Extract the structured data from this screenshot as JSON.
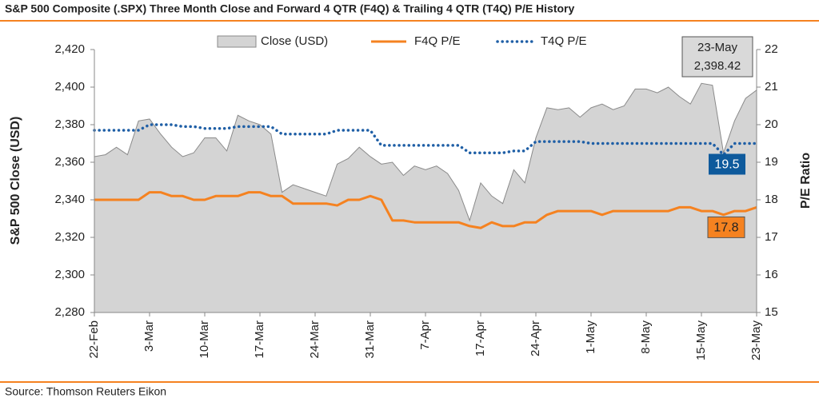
{
  "chart_data": {
    "type": "area-line",
    "title": "S&P 500 Composite (.SPX) Three Month Close and Forward 4 QTR (F4Q) & Trailing 4 QTR (T4Q) P/E History",
    "source": "Source: Thomson Reuters Eikon",
    "y_label": "S&P 500 Close (USD)",
    "y2_label": "P/E Ratio",
    "categories": [
      "22-Feb",
      null,
      null,
      null,
      null,
      "3-Mar",
      null,
      null,
      null,
      null,
      "10-Mar",
      null,
      null,
      null,
      null,
      "17-Mar",
      null,
      null,
      null,
      null,
      "24-Mar",
      null,
      null,
      null,
      null,
      "31-Mar",
      null,
      null,
      null,
      null,
      "7-Apr",
      null,
      null,
      null,
      null,
      "17-Apr",
      null,
      null,
      null,
      null,
      "24-Apr",
      null,
      null,
      null,
      null,
      "1-May",
      null,
      null,
      null,
      null,
      "8-May",
      null,
      null,
      null,
      null,
      "15-May",
      null,
      null,
      null,
      null,
      "23-May"
    ],
    "ylim": [
      2280,
      2420
    ],
    "yticks": [
      {
        "value": 2280,
        "label": "2,280"
      },
      {
        "value": 2300,
        "label": "2,300"
      },
      {
        "value": 2320,
        "label": "2,320"
      },
      {
        "value": 2340,
        "label": "2,340"
      },
      {
        "value": 2360,
        "label": "2,360"
      },
      {
        "value": 2380,
        "label": "2,380"
      },
      {
        "value": 2400,
        "label": "2,400"
      },
      {
        "value": 2420,
        "label": "2,420"
      }
    ],
    "y2lim": [
      15,
      22
    ],
    "y2ticks": [
      15,
      16,
      17,
      18,
      19,
      20,
      21,
      22
    ],
    "legend": "top",
    "series": [
      {
        "name": "Close (USD)",
        "type": "area",
        "color": "#d4d4d4",
        "values": [
          2363,
          2364,
          2368,
          2364,
          2382,
          2383,
          2375,
          2368,
          2363,
          2365,
          2373,
          2373,
          2366,
          2385,
          2382,
          2380,
          2375,
          2344,
          2348,
          2346,
          2344,
          2342,
          2359,
          2362,
          2368,
          2363,
          2359,
          2360,
          2353,
          2358,
          2356,
          2358,
          2354,
          2345,
          2329,
          2349,
          2342,
          2338,
          2356,
          2349,
          2373,
          2389,
          2388,
          2389,
          2384,
          2389,
          2391,
          2388,
          2390,
          2399,
          2399,
          2397,
          2400,
          2395,
          2391,
          2402,
          2401,
          2365,
          2382,
          2394,
          2398.42
        ],
        "value_labels": [
          null,
          null,
          null,
          null,
          null,
          null,
          null,
          null,
          null,
          null,
          null,
          null,
          null,
          null,
          null,
          null,
          null,
          null,
          null,
          null,
          null,
          null,
          null,
          null,
          null,
          null,
          null,
          null,
          null,
          null,
          null,
          null,
          null,
          null,
          null,
          null,
          null,
          null,
          null,
          null,
          null,
          null,
          null,
          null,
          null,
          null,
          null,
          null,
          null,
          null,
          null,
          null,
          null,
          null,
          null,
          null,
          null,
          null,
          null,
          null,
          "2,398.42"
        ]
      },
      {
        "name": "F4Q P/E",
        "type": "line",
        "axis": "y2",
        "color": "#f58220",
        "values": [
          18,
          18,
          18,
          18,
          18,
          18.2,
          18.2,
          18.1,
          18.1,
          18,
          18,
          18.1,
          18.1,
          18.1,
          18.2,
          18.2,
          18.1,
          18.1,
          17.9,
          17.9,
          17.9,
          17.9,
          17.85,
          18,
          18,
          18.1,
          18,
          17.45,
          17.45,
          17.4,
          17.4,
          17.4,
          17.4,
          17.4,
          17.3,
          17.25,
          17.4,
          17.3,
          17.3,
          17.4,
          17.4,
          17.6,
          17.7,
          17.7,
          17.7,
          17.7,
          17.6,
          17.7,
          17.7,
          17.7,
          17.7,
          17.7,
          17.7,
          17.8,
          17.8,
          17.7,
          17.7,
          17.6,
          17.7,
          17.7,
          17.8
        ]
      },
      {
        "name": "T4Q P/E",
        "type": "dotted",
        "axis": "y2",
        "color": "#1f5fa6",
        "values": [
          19.85,
          19.85,
          19.85,
          19.85,
          19.85,
          20,
          20,
          20,
          19.95,
          19.95,
          19.9,
          19.9,
          19.9,
          19.95,
          19.95,
          19.95,
          19.95,
          19.75,
          19.75,
          19.75,
          19.75,
          19.75,
          19.85,
          19.85,
          19.85,
          19.85,
          19.45,
          19.45,
          19.45,
          19.45,
          19.45,
          19.45,
          19.45,
          19.45,
          19.25,
          19.25,
          19.25,
          19.25,
          19.3,
          19.3,
          19.55,
          19.55,
          19.55,
          19.55,
          19.55,
          19.5,
          19.5,
          19.5,
          19.5,
          19.5,
          19.5,
          19.5,
          19.5,
          19.5,
          19.5,
          19.5,
          19.5,
          19.2,
          19.5,
          19.5,
          19.5
        ]
      }
    ]
  }
}
